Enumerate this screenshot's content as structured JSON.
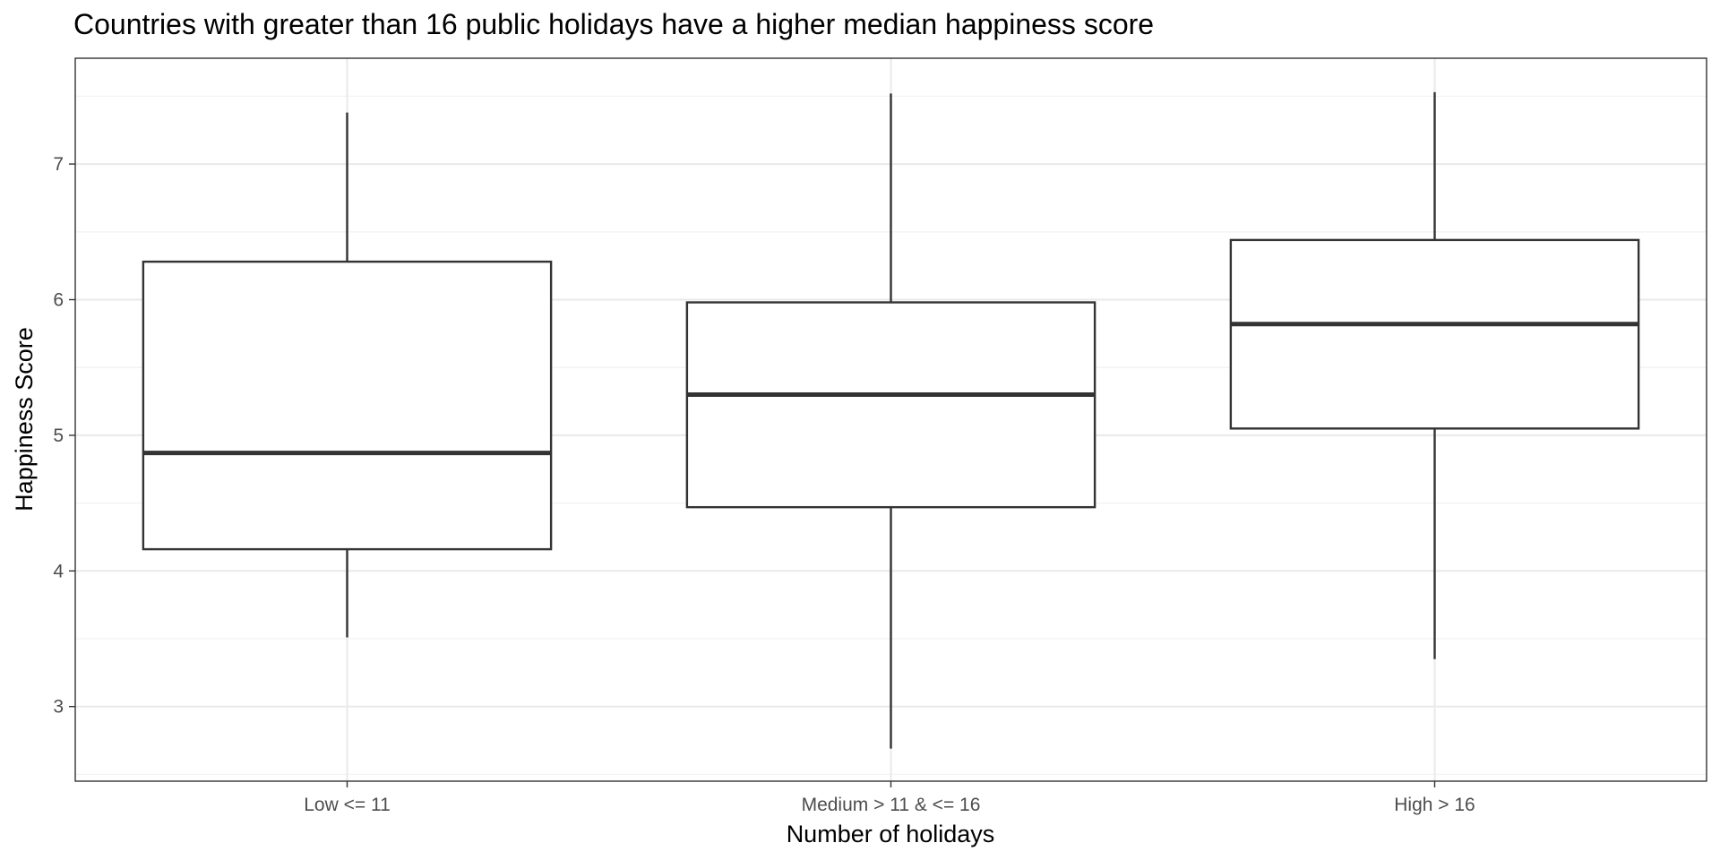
{
  "chart_data": {
    "type": "boxplot",
    "title": "Countries with greater than 16 public holidays have a higher median happiness score",
    "xlabel": "Number of holidays",
    "ylabel": "Happiness Score",
    "ylim": [
      2.45,
      7.78
    ],
    "yticks": [
      3,
      4,
      5,
      6,
      7
    ],
    "ytick_labels": [
      "3",
      "4",
      "5",
      "6",
      "7"
    ],
    "grid": true,
    "categories": [
      "Low <= 11",
      "Medium > 11 & <= 16",
      "High > 16"
    ],
    "boxes": [
      {
        "category": "Low <= 11",
        "whisker_low": 3.51,
        "q1": 4.16,
        "median": 4.87,
        "q3": 6.28,
        "whisker_high": 7.38
      },
      {
        "category": "Medium > 11 & <= 16",
        "whisker_low": 2.69,
        "q1": 4.47,
        "median": 5.3,
        "q3": 5.98,
        "whisker_high": 7.52
      },
      {
        "category": "High > 16",
        "whisker_low": 3.35,
        "q1": 5.05,
        "median": 5.82,
        "q3": 6.44,
        "whisker_high": 7.53
      }
    ],
    "colors": {
      "background": "#ffffff",
      "grid_major": "#ebebeb",
      "grid_minor": "#f2f2f2",
      "border": "#333333",
      "box_line": "#333333",
      "tick_text": "#4d4d4d"
    }
  }
}
